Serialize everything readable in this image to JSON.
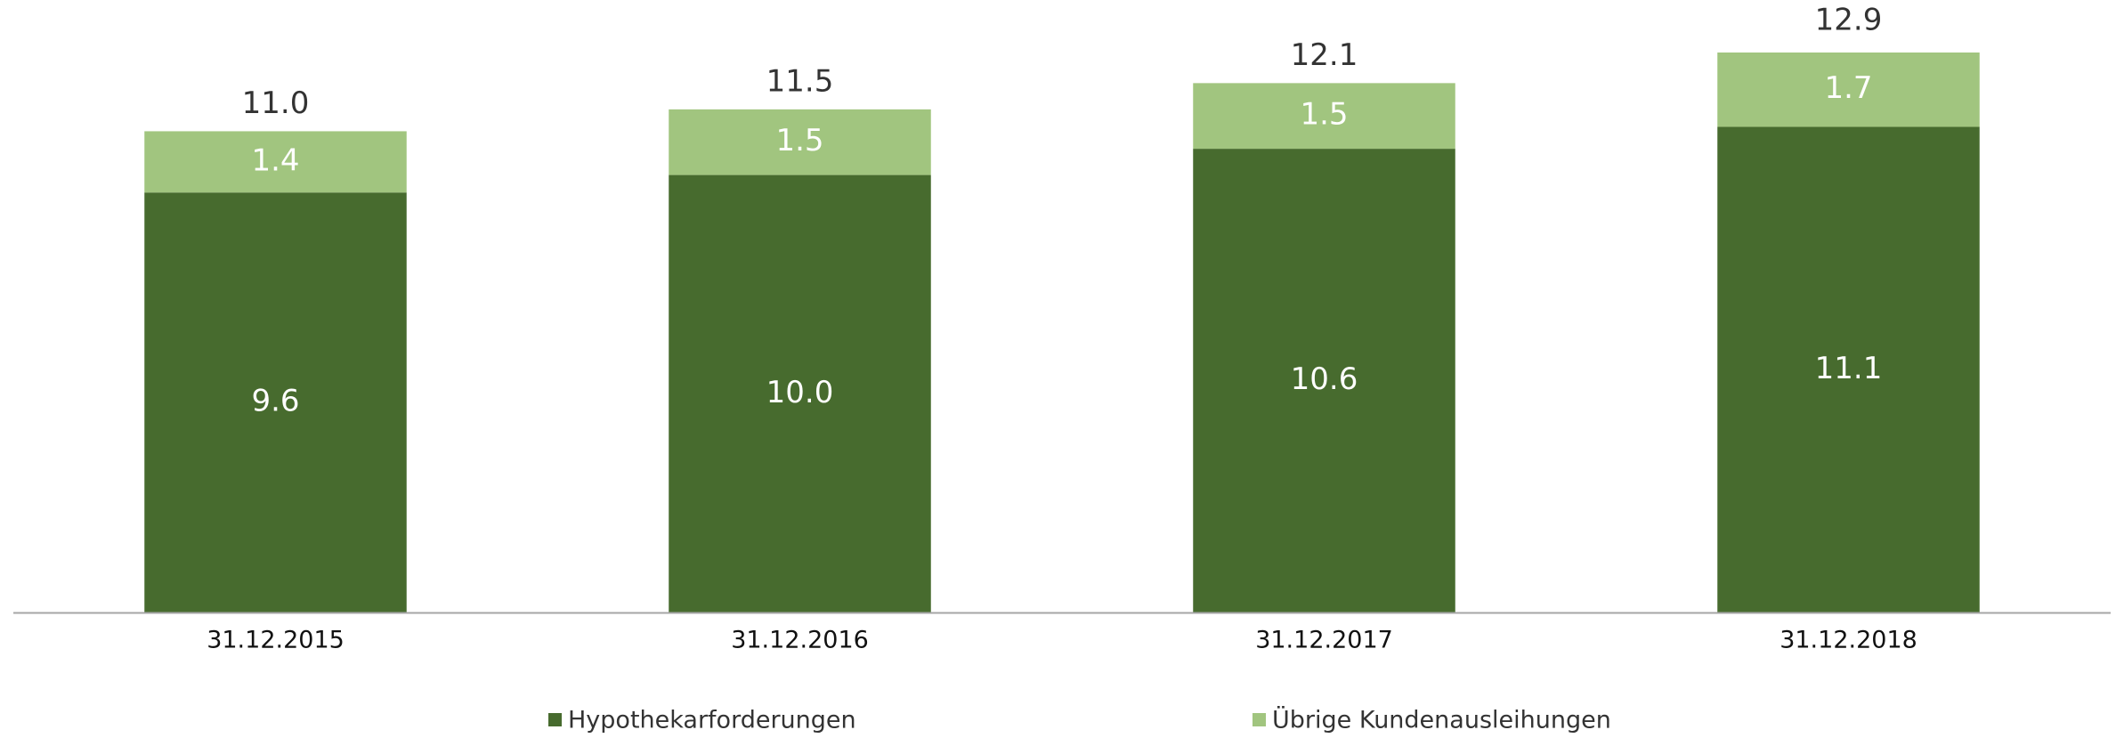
{
  "chart_data": {
    "type": "stacked_bar",
    "categories": [
      "31.12.2015",
      "31.12.2016",
      "31.12.2017",
      "31.12.2018"
    ],
    "series": [
      {
        "name": "Hypothekarforderungen",
        "color": "#476b2e",
        "values": [
          9.6,
          10.0,
          10.6,
          11.1
        ],
        "value_labels": [
          "9.6",
          "10.0",
          "10.6",
          "11.1"
        ]
      },
      {
        "name": "Übrige Kundenausleihungen",
        "color": "#a1c57f",
        "values": [
          1.4,
          1.5,
          1.5,
          1.7
        ],
        "value_labels": [
          "1.4",
          "1.5",
          "1.5",
          "1.7"
        ]
      }
    ],
    "totals": {
      "values": [
        11.0,
        11.5,
        12.1,
        12.9
      ],
      "value_labels": [
        "11.0",
        "11.5",
        "12.1",
        "12.9"
      ]
    },
    "ylim": [
      0,
      14
    ]
  }
}
